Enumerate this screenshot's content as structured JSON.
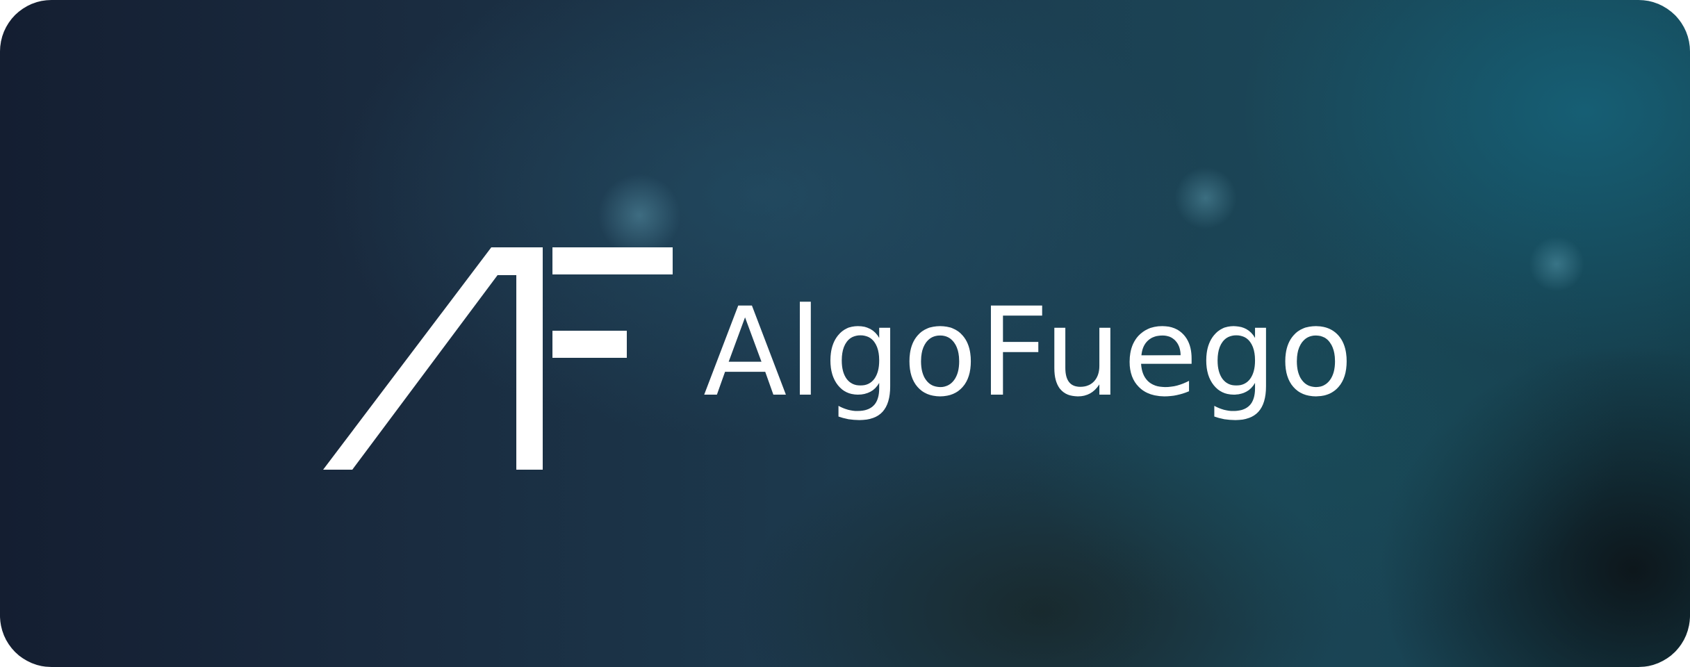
{
  "brand": {
    "name": "AlgoFuego",
    "logo_icon": "af-monogram-icon",
    "text_color": "#ffffff"
  },
  "background": {
    "gradient_start": "#141e31",
    "gradient_end": "#15404e"
  }
}
